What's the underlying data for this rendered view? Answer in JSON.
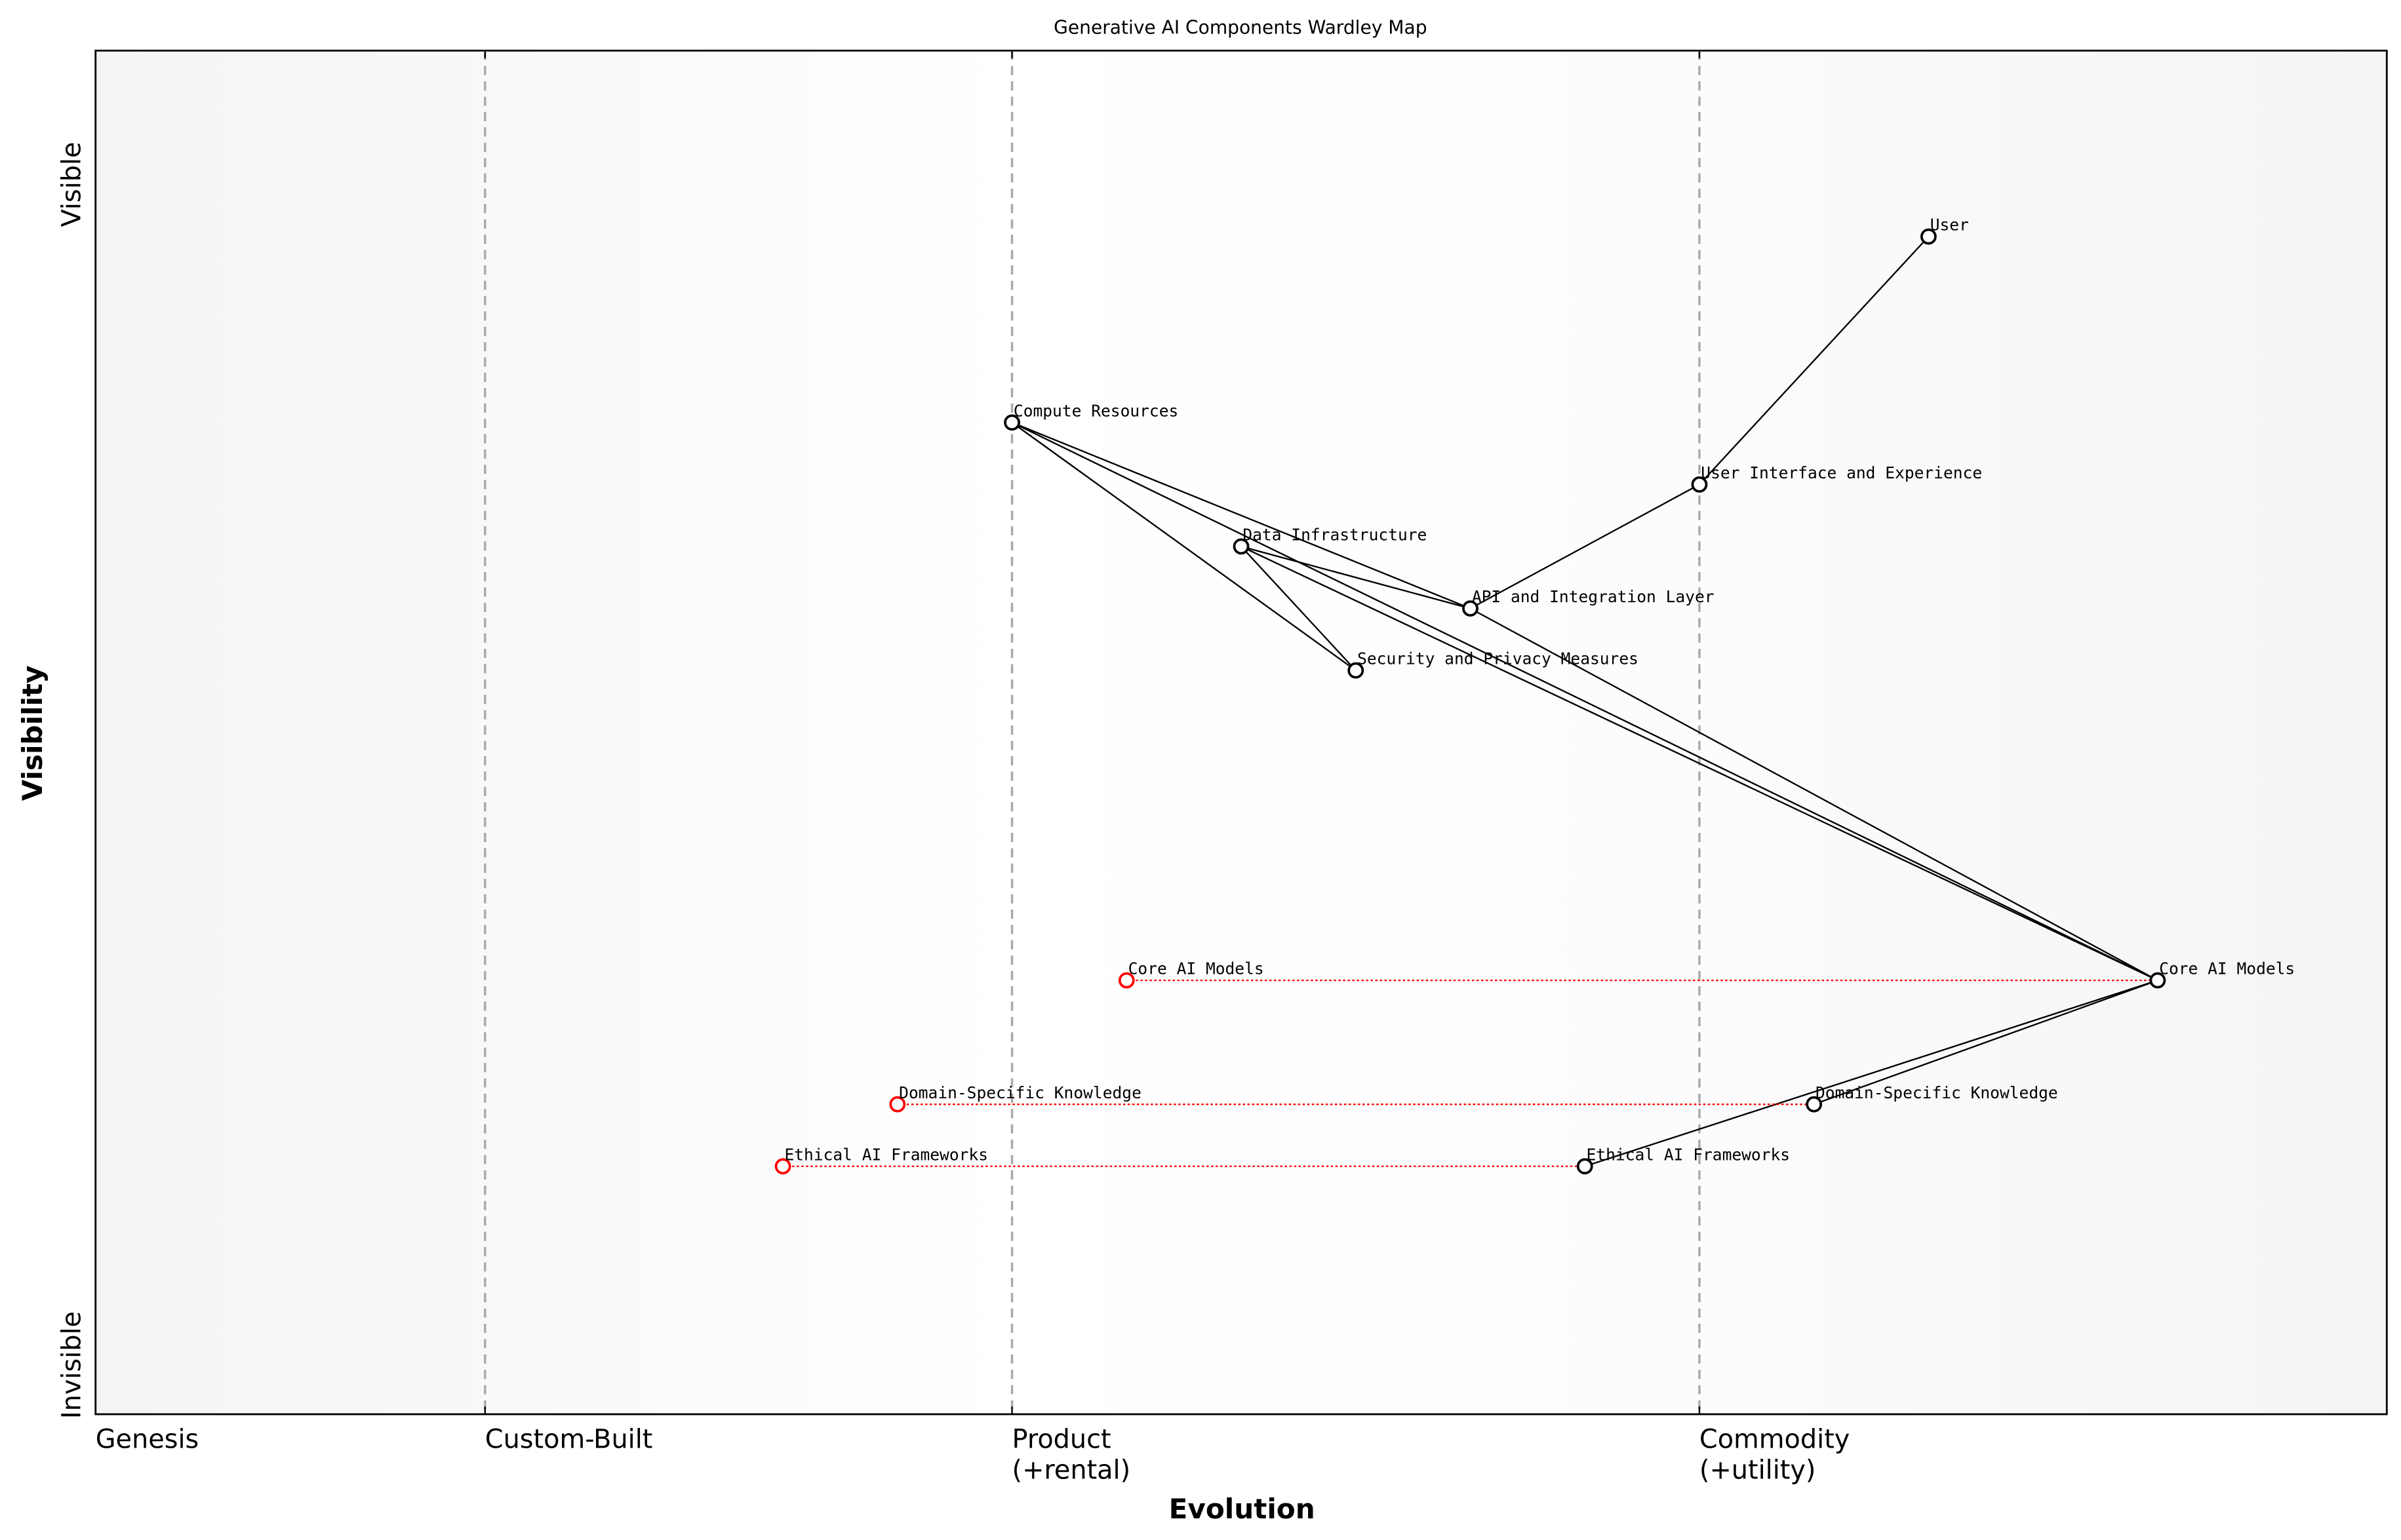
{
  "chart_data": {
    "type": "scatter",
    "title": "Generative AI Components Wardley Map",
    "xlabel": "Evolution",
    "ylabel": "Visibility",
    "xlim": [
      0,
      1
    ],
    "ylim": [
      0,
      1.1
    ],
    "grid": false,
    "stages": [
      {
        "label": "Genesis",
        "x": 0
      },
      {
        "label": "Custom-Built",
        "x": 0.17
      },
      {
        "label": "Product\n(+rental)",
        "x": 0.4
      },
      {
        "label": "Commodity\n(+utility)",
        "x": 0.7
      }
    ],
    "y_labels": {
      "top": "Visible",
      "bottom": "Invisible"
    },
    "components": [
      {
        "id": "user",
        "name": "User",
        "x": 0.8,
        "y": 0.95
      },
      {
        "id": "compute",
        "name": "Compute Resources",
        "x": 0.4,
        "y": 0.8
      },
      {
        "id": "ui",
        "name": "User Interface and Experience",
        "x": 0.7,
        "y": 0.75
      },
      {
        "id": "data",
        "name": "Data Infrastructure",
        "x": 0.5,
        "y": 0.7
      },
      {
        "id": "api",
        "name": "API and Integration Layer",
        "x": 0.6,
        "y": 0.65
      },
      {
        "id": "security",
        "name": "Security and Privacy Measures",
        "x": 0.55,
        "y": 0.6
      },
      {
        "id": "core",
        "name": "Core AI Models",
        "x": 0.9,
        "y": 0.35
      },
      {
        "id": "domain",
        "name": "Domain-Specific Knowledge",
        "x": 0.75,
        "y": 0.25
      },
      {
        "id": "ethical",
        "name": "Ethical AI Frameworks",
        "x": 0.65,
        "y": 0.2
      }
    ],
    "evolutions": [
      {
        "name": "Core AI Models",
        "from_x": 0.45,
        "to": "core",
        "y": 0.35
      },
      {
        "name": "Domain-Specific Knowledge",
        "from_x": 0.35,
        "to": "domain",
        "y": 0.25
      },
      {
        "name": "Ethical AI Frameworks",
        "from_x": 0.3,
        "to": "ethical",
        "y": 0.2
      }
    ],
    "links": [
      [
        "user",
        "ui"
      ],
      [
        "ui",
        "api"
      ],
      [
        "api",
        "data"
      ],
      [
        "api",
        "core"
      ],
      [
        "compute",
        "api"
      ],
      [
        "compute",
        "security"
      ],
      [
        "compute",
        "core"
      ],
      [
        "data",
        "security"
      ],
      [
        "data",
        "core"
      ],
      [
        "core",
        "domain"
      ],
      [
        "core",
        "ethical"
      ]
    ],
    "colors": {
      "component": "#000000",
      "evolution": "#ff0000",
      "stage_line": "#aaaaaa",
      "edge_shade": "#f4f4f4"
    }
  }
}
